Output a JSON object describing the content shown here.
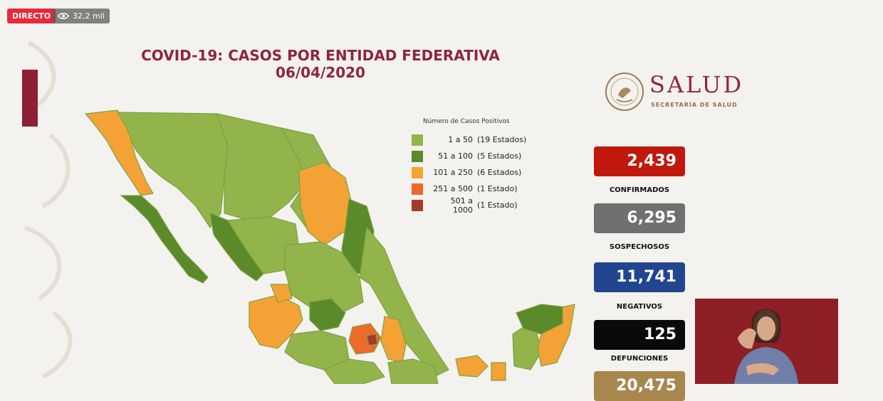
{
  "live_badge": "DIRECTO",
  "viewers": "32,2 mil",
  "title_line1": "COVID-19: CASOS POR ENTIDAD FEDERATIVA",
  "title_line2": "06/04/2020",
  "brand": {
    "name": "SALUD",
    "subtitle": "SECRETARÍA DE SALUD"
  },
  "legend": {
    "title": "Número de Casos Positivos",
    "items": [
      {
        "range": "1 a  50",
        "count": "(19 Estados)",
        "color": "#93b44a"
      },
      {
        "range": "51 a  100",
        "count": "(5 Estados)",
        "color": "#5a8a2a"
      },
      {
        "range": "101 a  250",
        "count": "(6 Estados)",
        "color": "#f4a235"
      },
      {
        "range": "251 a  500",
        "count": "(1 Estado)",
        "color": "#ee6a2a"
      },
      {
        "range": "501 a 1000",
        "count": "(1 Estado)",
        "color": "#a33a2a"
      }
    ]
  },
  "stats": [
    {
      "value": "2,439",
      "label": "CONFIRMADOS",
      "color": "#c1180e"
    },
    {
      "value": "6,295",
      "label": "SOSPECHOSOS",
      "color": "#707070"
    },
    {
      "value": "11,741",
      "label": "NEGATIVOS",
      "color": "#22458f"
    },
    {
      "value": "125",
      "label": "DEFUNCIONES",
      "color": "#0a0a0a"
    },
    {
      "value": "20,475",
      "label": "",
      "color": "#a8874f"
    }
  ],
  "icons": {
    "eye": "eye-icon",
    "emblem": "national-emblem-icon"
  }
}
